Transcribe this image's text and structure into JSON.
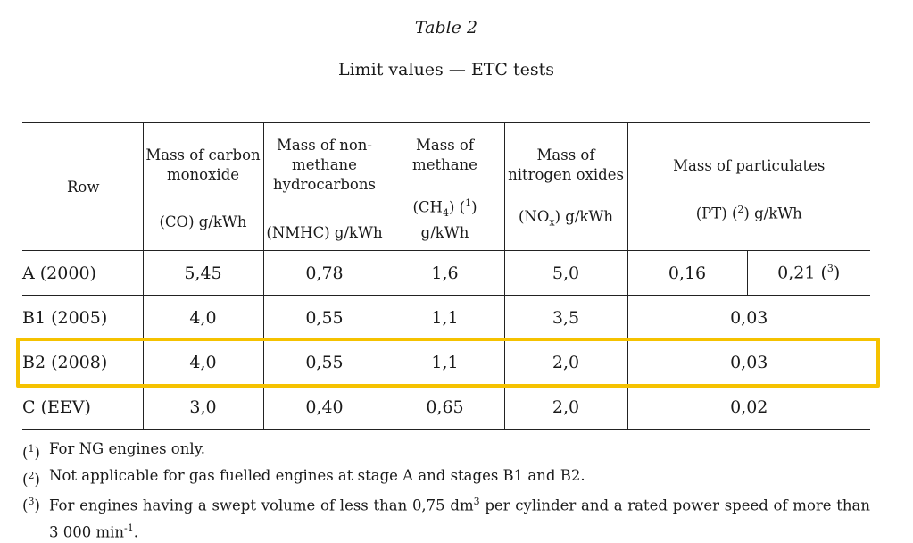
{
  "caption": {
    "label": "Table 2",
    "title": "Limit values — ETC tests"
  },
  "table": {
    "headers": {
      "row": "Row",
      "co_top": "Mass of carbon monoxide",
      "co_unit": "(CO) g/kWh",
      "nmhc_top": "Mass of non-methane hydrocarbons",
      "nmhc_unit": "(NMHC) g/kWh",
      "ch4_top": "Mass of methane",
      "ch4_unit_a": "(CH",
      "ch4_sub": "4",
      "ch4_unit_b": ") (",
      "ch4_sup": "1",
      "ch4_unit_c": ")",
      "ch4_unit_d": "g/kWh",
      "nox_top": "Mass of nitrogen oxides",
      "nox_unit_a": "(NO",
      "nox_sub": "x",
      "nox_unit_b": ") g/kWh",
      "pt_top": "Mass of particulates",
      "pt_unit_a": "(PT) (",
      "pt_sup": "2",
      "pt_unit_b": ") g/kWh"
    },
    "rows": [
      {
        "label": "A (2000)",
        "co": "5,45",
        "nmhc": "0,78",
        "ch4": "1,6",
        "nox": "5,0",
        "pt1": "0,16",
        "pt2": "0,21 (",
        "pt2_sup": "3",
        "pt2_end": ")"
      },
      {
        "label": "B1 (2005)",
        "co": "4,0",
        "nmhc": "0,55",
        "ch4": "1,1",
        "nox": "3,5",
        "pt": "0,03"
      },
      {
        "label": "B2 (2008)",
        "co": "4,0",
        "nmhc": "0,55",
        "ch4": "1,1",
        "nox": "2,0",
        "pt": "0,03"
      },
      {
        "label": "C (EEV)",
        "co": "3,0",
        "nmhc": "0,40",
        "ch4": "0,65",
        "nox": "2,0",
        "pt": "0,02"
      }
    ]
  },
  "highlight_color": "#f5c200",
  "notes": [
    {
      "mark_a": "(",
      "mark_sup": "1",
      "mark_b": ")",
      "text": "For NG engines only."
    },
    {
      "mark_a": "(",
      "mark_sup": "2",
      "mark_b": ")",
      "text": "Not applicable for gas fuelled engines at stage A and stages B1 and B2."
    },
    {
      "mark_a": "(",
      "mark_sup": "3",
      "mark_b": ")",
      "text_a": "For engines having a swept volume of less than 0,75 dm",
      "text_sup": "3",
      "text_b": " per cylinder and a rated power speed of more than 3 000 min",
      "text_sup2": "-1",
      "text_c": "."
    }
  ]
}
